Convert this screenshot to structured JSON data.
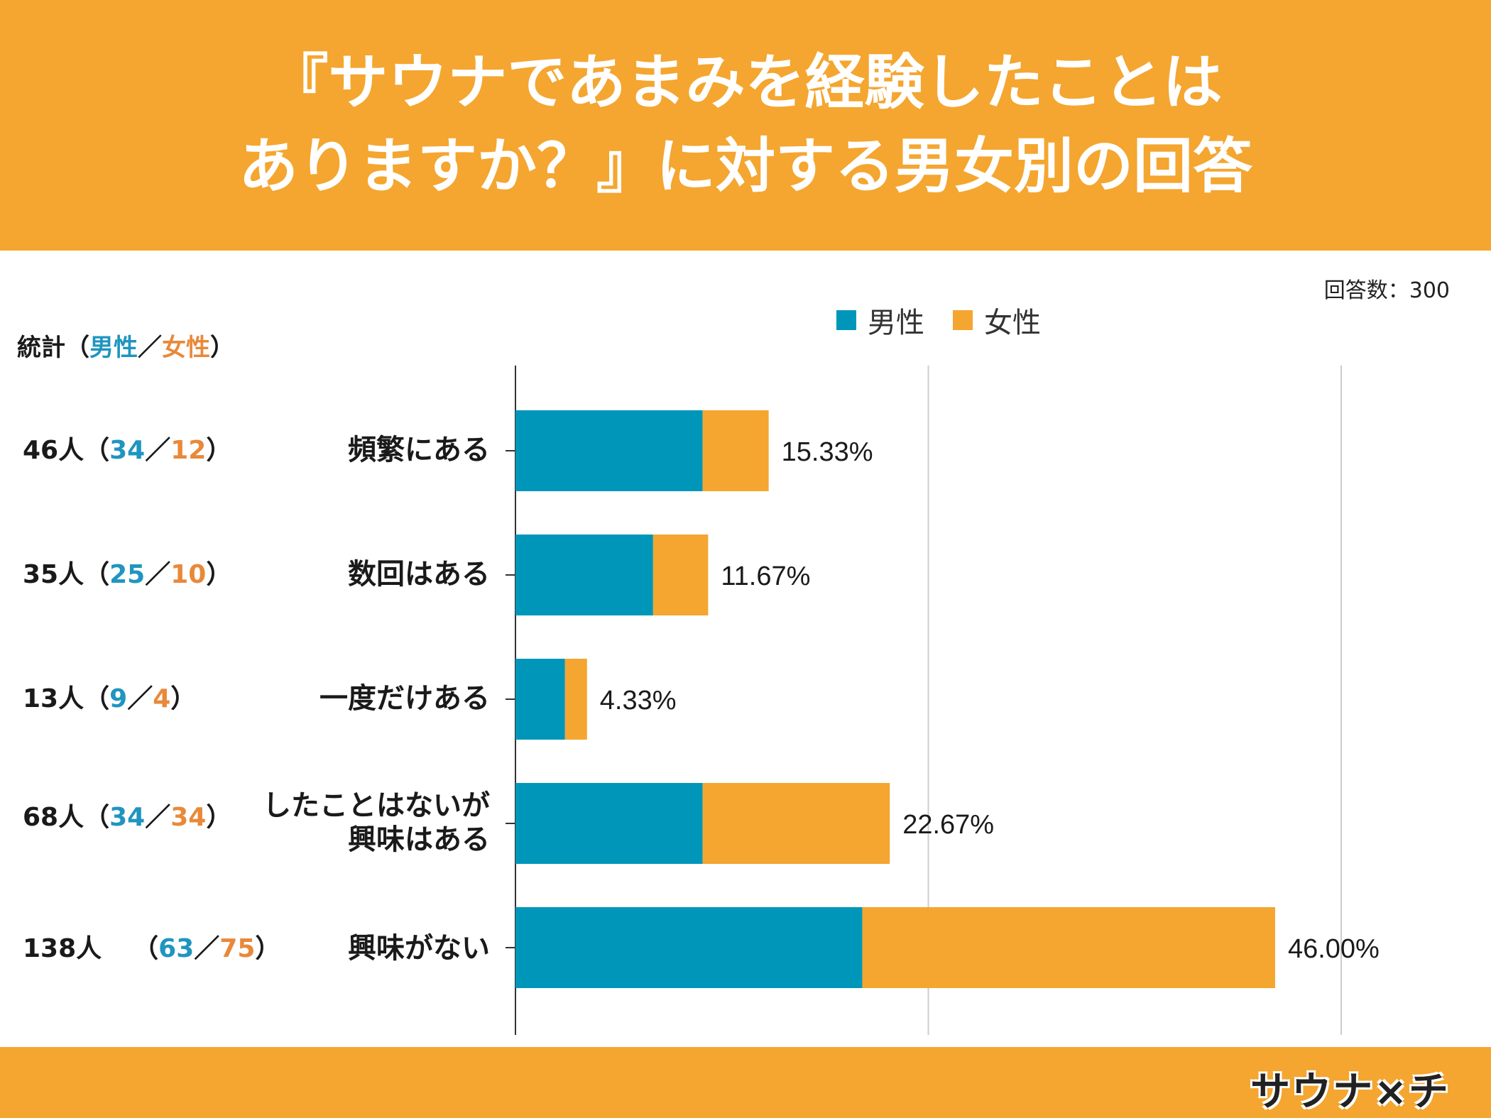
{
  "title": {
    "line1": "『サウナであまみを経験したことは",
    "line2": "ありますか？』に対する男女別の回答"
  },
  "respondents": "回答数：300",
  "legend": {
    "male": "男性",
    "female": "女性"
  },
  "colors": {
    "male": "#0096ba",
    "female": "#f4a630",
    "header": "#f4a630"
  },
  "stats": {
    "header_prefix": "統計（",
    "header_male": "男性",
    "header_sep": "／",
    "header_female": "女性",
    "header_suffix": "）",
    "rows": [
      {
        "total": "46人",
        "open": "（",
        "male": "34",
        "sep": "／",
        "female": "12",
        "close": "）"
      },
      {
        "total": "35人",
        "open": "（",
        "male": "25",
        "sep": "／",
        "female": "10",
        "close": "）"
      },
      {
        "total": "13人",
        "open": "（",
        "male": "9",
        "sep": "／",
        "female": "4",
        "close": "）"
      },
      {
        "total": "68人",
        "open": "（",
        "male": "34",
        "sep": "／",
        "female": "34",
        "close": "）"
      },
      {
        "total": "138人",
        "open": "（",
        "male": "63",
        "sep": "／",
        "female": "75",
        "close": "）"
      }
    ]
  },
  "chart_data": {
    "type": "bar",
    "orientation": "horizontal",
    "stacked": true,
    "title": "『サウナであまみを経験したことはありますか？』に対する男女別の回答",
    "categories": [
      "頻繁にある",
      "数回はある",
      "一度だけある",
      "したことはないが\n興味はある",
      "興味がない"
    ],
    "category_lines": [
      [
        "頻繁にある"
      ],
      [
        "数回はある"
      ],
      [
        "一度だけある"
      ],
      [
        "したことはないが",
        "興味はある"
      ],
      [
        "興味がない"
      ]
    ],
    "series": [
      {
        "name": "男性",
        "values": [
          34,
          25,
          9,
          34,
          63
        ]
      },
      {
        "name": "女性",
        "values": [
          12,
          10,
          4,
          34,
          75
        ]
      }
    ],
    "labels": [
      "15.33%",
      "11.67%",
      "4.33%",
      "22.67%",
      "46.00%"
    ],
    "xlim": [
      0,
      150
    ],
    "gridlines": [
      75,
      150
    ],
    "legend": "top"
  },
  "logo": {
    "text": "サウナ×チ"
  }
}
